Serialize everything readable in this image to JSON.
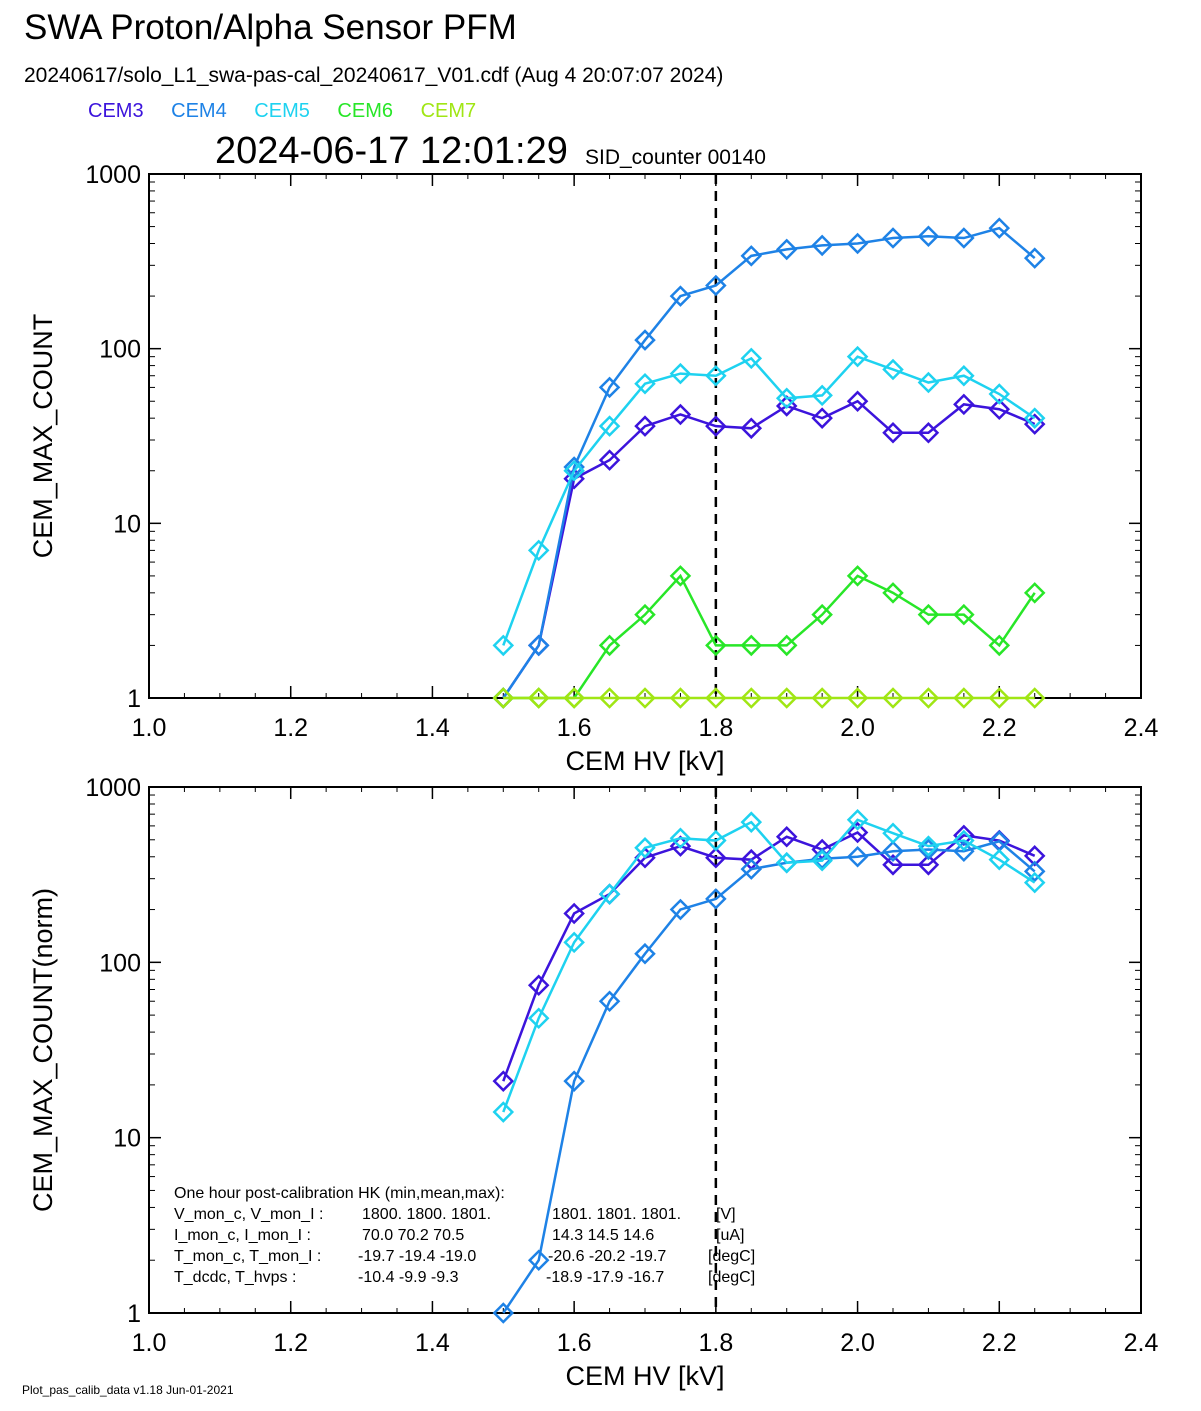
{
  "header": {
    "title": "SWA Proton/Alpha Sensor PFM",
    "subtitle": "20240617/solo_L1_swa-pas-cal_20240617_V01.cdf  (Aug  4 20:07:07 2024)",
    "timestamp": "2024-06-17 12:01:29",
    "sid_counter": "SID_counter 00140"
  },
  "legend": [
    {
      "name": "CEM3",
      "color": "#3c14dc"
    },
    {
      "name": "CEM4",
      "color": "#1e82e6"
    },
    {
      "name": "CEM5",
      "color": "#1ed2f0"
    },
    {
      "name": "CEM6",
      "color": "#28e628"
    },
    {
      "name": "CEM7",
      "color": "#a0e614"
    }
  ],
  "hk_table": {
    "heading": "One hour post-calibration HK (min,mean,max):",
    "rows": [
      {
        "label": "V_mon_c, V_mon_I :",
        "c": "1800.  1800.  1801.",
        "i": "1801.  1801.  1801.",
        "unit": "[V]"
      },
      {
        "label": "I_mon_c,  I_mon_I :",
        "c": "70.0   70.2   70.5",
        "i": "14.3   14.5   14.6",
        "unit": "[uA]"
      },
      {
        "label": "T_mon_c, T_mon_I :",
        "c": "-19.7  -19.4  -19.0",
        "i": "-20.6  -20.2  -19.7",
        "unit": "[degC]"
      },
      {
        "label": "T_dcdc,    T_hvps :",
        "c": "-10.4   -9.9   -9.3",
        "i": "-18.9  -17.9  -16.7",
        "unit": "[degC]"
      }
    ]
  },
  "footer": "Plot_pas_calib_data v1.18 Jun-01-2021",
  "chart_data": [
    {
      "type": "line",
      "xlabel": "CEM HV [kV]",
      "ylabel": "CEM_MAX_COUNT",
      "xlim": [
        1.0,
        2.4
      ],
      "ylim": [
        1,
        1000
      ],
      "yscale": "log",
      "x_ticks": [
        "1.0",
        "1.2",
        "1.4",
        "1.6",
        "1.8",
        "2.0",
        "2.2",
        "2.4"
      ],
      "y_ticks": [
        "1",
        "10",
        "100",
        "1000"
      ],
      "vline_x": 1.8,
      "x": [
        1.5,
        1.55,
        1.6,
        1.65,
        1.7,
        1.75,
        1.8,
        1.85,
        1.9,
        1.95,
        2.0,
        2.05,
        2.1,
        2.15,
        2.2,
        2.25
      ],
      "series": [
        {
          "name": "CEM3",
          "color": "#3c14dc",
          "values": [
            1,
            2,
            18,
            23,
            36,
            42,
            36,
            35,
            47,
            40,
            50,
            33,
            33,
            48,
            45,
            37
          ]
        },
        {
          "name": "CEM4",
          "color": "#1e82e6",
          "values": [
            1,
            2,
            21,
            60,
            112,
            200,
            230,
            340,
            370,
            390,
            400,
            430,
            440,
            430,
            490,
            330
          ]
        },
        {
          "name": "CEM5",
          "color": "#1ed2f0",
          "values": [
            2,
            7,
            20,
            36,
            63,
            72,
            70,
            88,
            52,
            54,
            90,
            76,
            64,
            70,
            55,
            40
          ]
        },
        {
          "name": "CEM6",
          "color": "#28e628",
          "values": [
            1,
            1,
            1,
            2,
            3,
            5,
            2,
            2,
            2,
            3,
            5,
            4,
            3,
            3,
            2,
            4
          ]
        },
        {
          "name": "CEM7",
          "color": "#a0e614",
          "values": [
            1,
            1,
            1,
            1,
            1,
            1,
            1,
            1,
            1,
            1,
            1,
            1,
            1,
            1,
            1,
            1
          ]
        }
      ]
    },
    {
      "type": "line",
      "xlabel": "CEM HV [kV]",
      "ylabel": "CEM_MAX_COUNT(norm)",
      "xlim": [
        1.0,
        2.4
      ],
      "ylim": [
        1,
        1000
      ],
      "yscale": "log",
      "x_ticks": [
        "1.0",
        "1.2",
        "1.4",
        "1.6",
        "1.8",
        "2.0",
        "2.2",
        "2.4"
      ],
      "y_ticks": [
        "1",
        "10",
        "100",
        "1000"
      ],
      "vline_x": 1.8,
      "x": [
        1.5,
        1.55,
        1.6,
        1.65,
        1.7,
        1.75,
        1.8,
        1.85,
        1.9,
        1.95,
        2.0,
        2.05,
        2.1,
        2.15,
        2.2,
        2.25
      ],
      "series": [
        {
          "name": "CEM3",
          "color": "#3c14dc",
          "values": [
            21,
            74,
            190,
            245,
            395,
            460,
            395,
            385,
            520,
            440,
            550,
            360,
            360,
            530,
            495,
            405
          ]
        },
        {
          "name": "CEM4",
          "color": "#1e82e6",
          "values": [
            1,
            2,
            21,
            60,
            112,
            200,
            230,
            340,
            370,
            390,
            400,
            430,
            440,
            430,
            490,
            330
          ]
        },
        {
          "name": "CEM5",
          "color": "#1ed2f0",
          "values": [
            14,
            48,
            130,
            245,
            450,
            510,
            495,
            630,
            370,
            380,
            650,
            545,
            460,
            495,
            385,
            285
          ]
        }
      ]
    }
  ]
}
